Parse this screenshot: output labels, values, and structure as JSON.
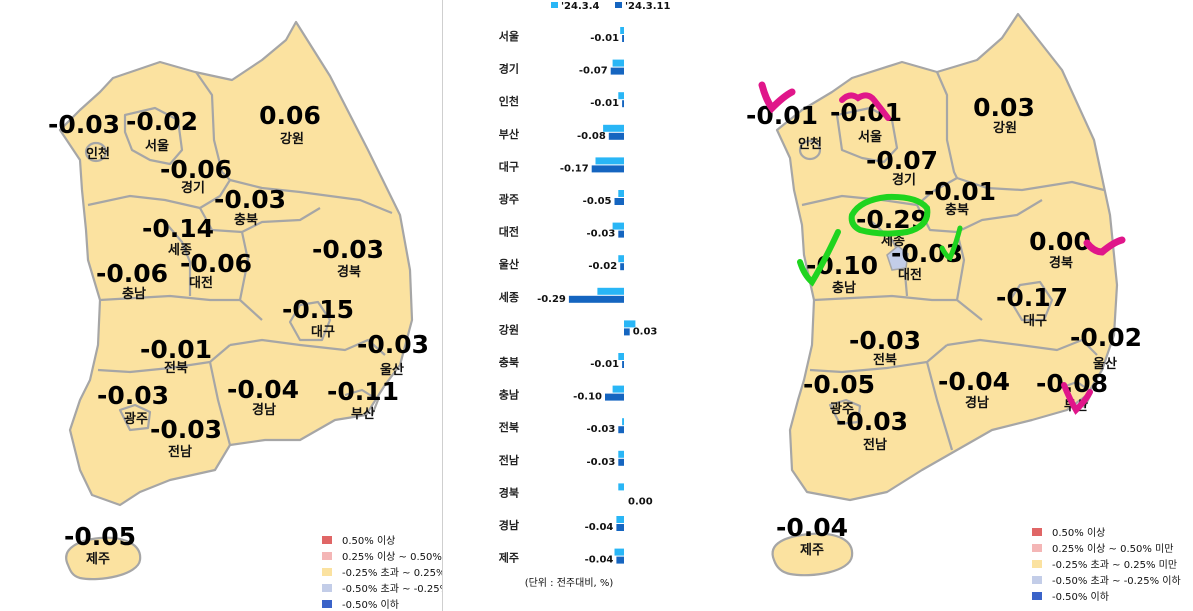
{
  "colors": {
    "land": "#fbe2a0",
    "border": "#a6a6a6",
    "prev_week": "#29b6f6",
    "this_week": "#1565c0",
    "legend": [
      "#e06666",
      "#f4b6b6",
      "#fbe2a0",
      "#c3cde8",
      "#3a63c9"
    ],
    "highlight_pink": "#e0168a",
    "highlight_green": "#1fd41f"
  },
  "legend_left": [
    "0.50% 이상",
    "0.25% 이상 ~ 0.50%",
    "-0.25% 초과 ~ 0.25%",
    "-0.50% 초과 ~ -0.25%",
    "-0.50% 이하"
  ],
  "legend_right": [
    "0.50% 이상",
    "0.25% 이상 ~ 0.50% 미만",
    "-0.25% 초과 ~ 0.25% 미만",
    "-0.50% 초과 ~ -0.25% 이하",
    "-0.50% 이하"
  ],
  "map_left": {
    "regions": [
      {
        "name": "인천",
        "value": "-0.03"
      },
      {
        "name": "서울",
        "value": "-0.02"
      },
      {
        "name": "경기",
        "value": "-0.06"
      },
      {
        "name": "강원",
        "value": "0.06"
      },
      {
        "name": "충북",
        "value": "-0.03"
      },
      {
        "name": "세종",
        "value": "-0.14"
      },
      {
        "name": "대전",
        "value": "-0.06"
      },
      {
        "name": "충남",
        "value": "-0.06"
      },
      {
        "name": "경북",
        "value": "-0.03"
      },
      {
        "name": "대구",
        "value": "-0.15"
      },
      {
        "name": "전북",
        "value": "-0.01"
      },
      {
        "name": "울산",
        "value": "-0.03"
      },
      {
        "name": "광주",
        "value": "-0.03"
      },
      {
        "name": "경남",
        "value": "-0.04"
      },
      {
        "name": "부산",
        "value": "-0.11"
      },
      {
        "name": "전남",
        "value": "-0.03"
      },
      {
        "name": "제주",
        "value": "-0.05"
      }
    ]
  },
  "map_right": {
    "regions": [
      {
        "name": "인천",
        "value": "-0.01"
      },
      {
        "name": "서울",
        "value": "-0.01"
      },
      {
        "name": "강원",
        "value": "0.03"
      },
      {
        "name": "경기",
        "value": "-0.07"
      },
      {
        "name": "충북",
        "value": "-0.01"
      },
      {
        "name": "세종",
        "value": "-0.29"
      },
      {
        "name": "경북",
        "value": "0.00"
      },
      {
        "name": "충남",
        "value": "-0.10"
      },
      {
        "name": "대전",
        "value": "-0.03"
      },
      {
        "name": "대구",
        "value": "-0.17"
      },
      {
        "name": "전북",
        "value": "-0.03"
      },
      {
        "name": "울산",
        "value": "-0.02"
      },
      {
        "name": "광주",
        "value": "-0.05"
      },
      {
        "name": "경남",
        "value": "-0.04"
      },
      {
        "name": "부산",
        "value": "-0.08"
      },
      {
        "name": "전남",
        "value": "-0.03"
      },
      {
        "name": "제주",
        "value": "-0.04"
      }
    ]
  },
  "chart_data": {
    "type": "bar",
    "orientation": "horizontal",
    "legend": [
      "'24.3.4",
      "'24.3.11"
    ],
    "unit_note": "(단위 : 전주대비, %)",
    "categories": [
      "서울",
      "경기",
      "인천",
      "부산",
      "대구",
      "광주",
      "대전",
      "울산",
      "세종",
      "강원",
      "충북",
      "충남",
      "전북",
      "전남",
      "경북",
      "경남",
      "제주"
    ],
    "series": [
      {
        "name": "'24.3.4",
        "values": [
          -0.02,
          -0.06,
          -0.03,
          -0.11,
          -0.15,
          -0.03,
          -0.06,
          -0.03,
          -0.14,
          0.06,
          -0.03,
          -0.06,
          -0.01,
          -0.03,
          -0.03,
          -0.04,
          -0.05
        ]
      },
      {
        "name": "'24.3.11",
        "values": [
          -0.01,
          -0.07,
          -0.01,
          -0.08,
          -0.17,
          -0.05,
          -0.03,
          -0.02,
          -0.29,
          0.03,
          -0.01,
          -0.1,
          -0.03,
          -0.03,
          0.0,
          -0.04,
          -0.04
        ]
      }
    ],
    "labels": [
      "-0.01",
      "-0.07",
      "-0.01",
      "-0.08",
      "-0.17",
      "-0.05",
      "-0.03",
      "-0.02",
      "-0.29",
      "0.03",
      "-0.01",
      "-0.10",
      "-0.03",
      "-0.03",
      "0.00",
      "-0.04",
      "-0.04"
    ],
    "grid": false,
    "legend_position": "top"
  }
}
